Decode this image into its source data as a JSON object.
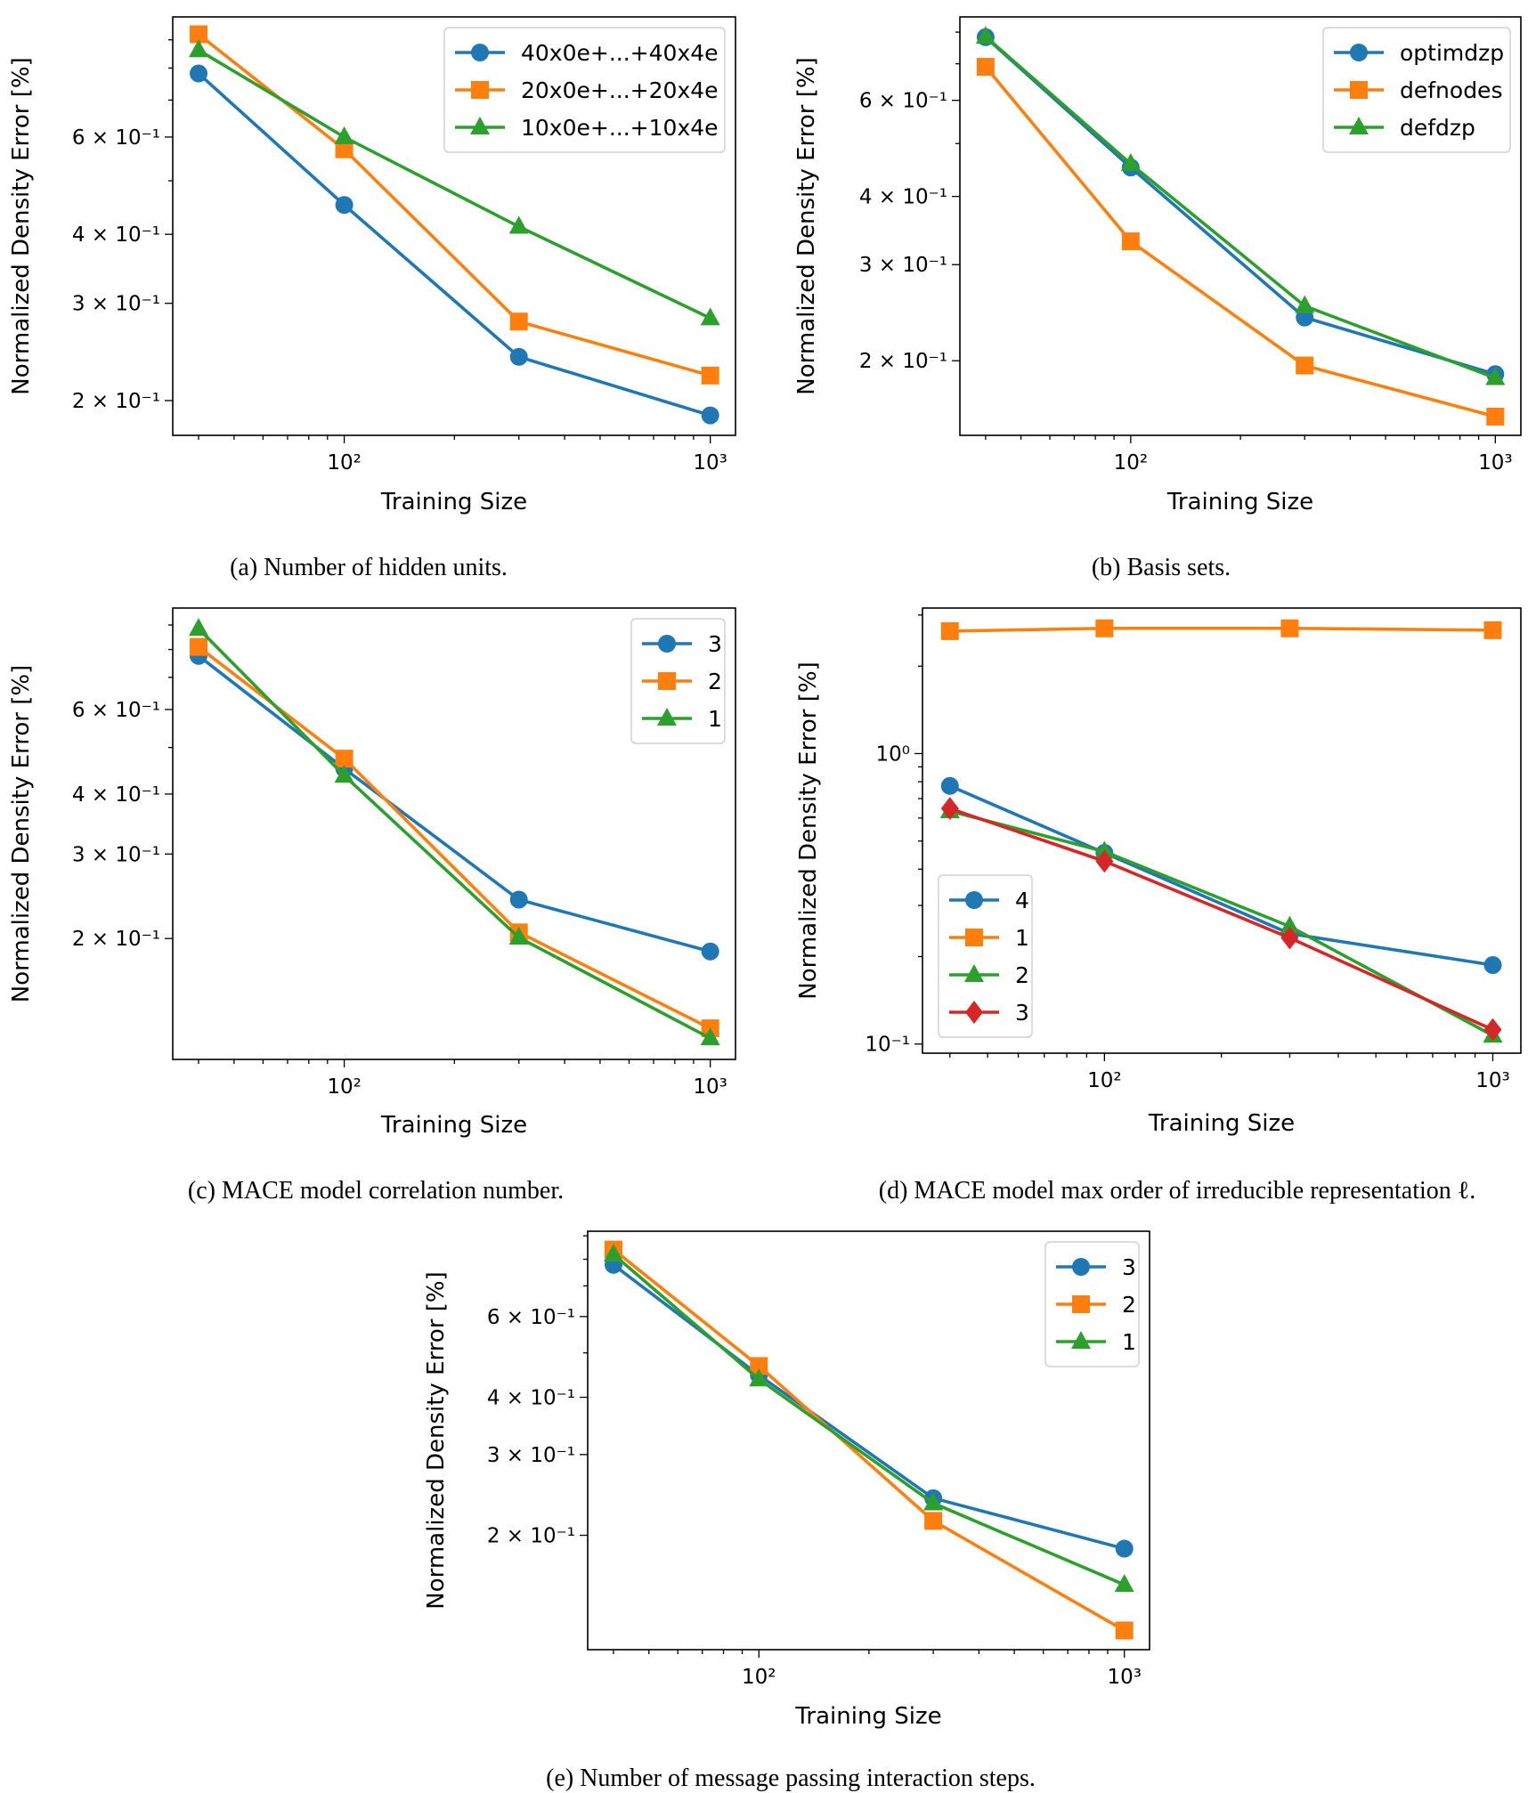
{
  "chart_data": [
    {
      "type": "line",
      "caption": "(a) Number of hidden units.",
      "xlabel": "Training Size",
      "ylabel": "Normalized Density Error [%]",
      "xscale": "log",
      "yscale": "log",
      "xlim": [
        34,
        1172
      ],
      "ylim": [
        0.173,
        0.99
      ],
      "grid": false,
      "legend": "upper right",
      "xticks": [
        {
          "value": 100,
          "label": "10²"
        },
        {
          "value": 1000,
          "label": "10³"
        }
      ],
      "yticks": [
        {
          "value": 0.2,
          "label": "2 × 10⁻¹"
        },
        {
          "value": 0.3,
          "label": "3 × 10⁻¹"
        },
        {
          "value": 0.4,
          "label": "4 × 10⁻¹"
        },
        {
          "value": 0.6,
          "label": "6 × 10⁻¹"
        }
      ],
      "x": [
        40,
        100,
        300,
        1000
      ],
      "series": [
        {
          "name": "40x0e+...+40x4e",
          "color": "#1f77b4",
          "marker": "circle",
          "values": [
            0.782,
            0.452,
            0.24,
            0.188
          ]
        },
        {
          "name": "20x0e+...+20x4e",
          "color": "#ff7f0e",
          "marker": "square",
          "values": [
            0.921,
            0.57,
            0.278,
            0.222
          ]
        },
        {
          "name": "10x0e+...+10x4e",
          "color": "#2ca02c",
          "marker": "triangle",
          "values": [
            0.862,
            0.6,
            0.413,
            0.282
          ]
        }
      ]
    },
    {
      "type": "line",
      "caption": "(b) Basis sets.",
      "xlabel": "Training Size",
      "ylabel": "Normalized Density Error [%]",
      "xscale": "log",
      "yscale": "log",
      "xlim": [
        34,
        1175
      ],
      "ylim": [
        0.146,
        0.853
      ],
      "grid": false,
      "legend": "upper right",
      "xticks": [
        {
          "value": 100,
          "label": "10²"
        },
        {
          "value": 1000,
          "label": "10³"
        }
      ],
      "yticks": [
        {
          "value": 0.2,
          "label": "2 × 10⁻¹"
        },
        {
          "value": 0.3,
          "label": "3 × 10⁻¹"
        },
        {
          "value": 0.4,
          "label": "4 × 10⁻¹"
        },
        {
          "value": 0.6,
          "label": "6 × 10⁻¹"
        }
      ],
      "x": [
        40,
        100,
        300,
        1000
      ],
      "series": [
        {
          "name": "optimdzp",
          "color": "#1f77b4",
          "marker": "circle",
          "values": [
            0.783,
            0.452,
            0.24,
            0.189
          ]
        },
        {
          "name": "defnodes",
          "color": "#ff7f0e",
          "marker": "square",
          "values": [
            0.691,
            0.331,
            0.196,
            0.158
          ]
        },
        {
          "name": "defdzp",
          "color": "#2ca02c",
          "marker": "triangle",
          "values": [
            0.785,
            0.459,
            0.252,
            0.186
          ]
        }
      ]
    },
    {
      "type": "line",
      "caption": "(c) MACE model correlation number.",
      "xlabel": "Training Size",
      "ylabel": "Normalized Density Error [%]",
      "xscale": "log",
      "yscale": "log",
      "xlim": [
        34,
        1172
      ],
      "ylim": [
        0.112,
        0.976
      ],
      "grid": false,
      "legend": "upper right",
      "xticks": [
        {
          "value": 100,
          "label": "10²"
        },
        {
          "value": 1000,
          "label": "10³"
        }
      ],
      "yticks": [
        {
          "value": 0.2,
          "label": "2 × 10⁻¹"
        },
        {
          "value": 0.3,
          "label": "3 × 10⁻¹"
        },
        {
          "value": 0.4,
          "label": "4 × 10⁻¹"
        },
        {
          "value": 0.6,
          "label": "6 × 10⁻¹"
        }
      ],
      "x": [
        40,
        100,
        300,
        1000
      ],
      "series": [
        {
          "name": "3",
          "color": "#1f77b4",
          "marker": "circle",
          "values": [
            0.776,
            0.452,
            0.241,
            0.188
          ]
        },
        {
          "name": "2",
          "color": "#ff7f0e",
          "marker": "square",
          "values": [
            0.81,
            0.474,
            0.206,
            0.13
          ]
        },
        {
          "name": "1",
          "color": "#2ca02c",
          "marker": "triangle",
          "values": [
            0.884,
            0.437,
            0.201,
            0.124
          ]
        }
      ]
    },
    {
      "type": "line",
      "caption": "(d) MACE model max order of irreducible representation ℓ.",
      "xlabel": "Training Size",
      "ylabel": "Normalized Density Error [%]",
      "xscale": "log",
      "yscale": "log",
      "xlim": [
        34,
        1181
      ],
      "ylim": [
        0.093,
        3.17
      ],
      "grid": false,
      "legend": "lower left",
      "xticks": [
        {
          "value": 100,
          "label": "10²"
        },
        {
          "value": 1000,
          "label": "10³"
        }
      ],
      "yticks": [
        {
          "value": 0.1,
          "label": "10⁻¹"
        },
        {
          "value": 1,
          "label": "10⁰"
        }
      ],
      "x": [
        40,
        100,
        300,
        1000
      ],
      "series": [
        {
          "name": "4",
          "color": "#1f77b4",
          "marker": "circle",
          "values": [
            0.774,
            0.455,
            0.24,
            0.187
          ]
        },
        {
          "name": "1",
          "color": "#ff7f0e",
          "marker": "square",
          "values": [
            2.64,
            2.7,
            2.7,
            2.66
          ]
        },
        {
          "name": "2",
          "color": "#2ca02c",
          "marker": "triangle",
          "values": [
            0.634,
            0.46,
            0.254,
            0.107
          ]
        },
        {
          "name": "3",
          "color": "#d62728",
          "marker": "diamond",
          "values": [
            0.647,
            0.426,
            0.232,
            0.112
          ]
        }
      ]
    },
    {
      "type": "line",
      "caption": "(e) Number of message passing interaction steps.",
      "xlabel": "Training Size",
      "ylabel": "Normalized Density Error [%]",
      "xscale": "log",
      "yscale": "log",
      "xlim": [
        34,
        1172
      ],
      "ylim": [
        0.1126,
        0.921
      ],
      "grid": false,
      "legend": "upper right",
      "xticks": [
        {
          "value": 100,
          "label": "10²"
        },
        {
          "value": 1000,
          "label": "10³"
        }
      ],
      "yticks": [
        {
          "value": 0.2,
          "label": "2 × 10⁻¹"
        },
        {
          "value": 0.3,
          "label": "3 × 10⁻¹"
        },
        {
          "value": 0.4,
          "label": "4 × 10⁻¹"
        },
        {
          "value": 0.6,
          "label": "6 × 10⁻¹"
        }
      ],
      "x": [
        40,
        100,
        300,
        1000
      ],
      "series": [
        {
          "name": "3",
          "color": "#1f77b4",
          "marker": "circle",
          "values": [
            0.778,
            0.447,
            0.241,
            0.187
          ]
        },
        {
          "name": "2",
          "color": "#ff7f0e",
          "marker": "square",
          "values": [
            0.84,
            0.468,
            0.215,
            0.124
          ]
        },
        {
          "name": "1",
          "color": "#2ca02c",
          "marker": "triangle",
          "values": [
            0.82,
            0.438,
            0.235,
            0.156
          ]
        }
      ]
    }
  ]
}
